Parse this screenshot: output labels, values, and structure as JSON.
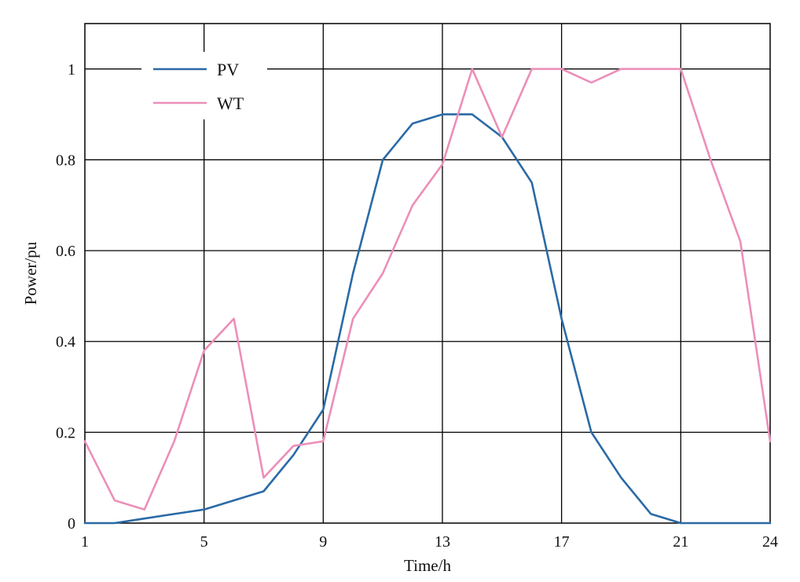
{
  "chart_data": {
    "type": "line",
    "xlabel": "Time/h",
    "ylabel": "Power/pu",
    "xlim": [
      1,
      24
    ],
    "ylim": [
      0,
      1.1
    ],
    "xticks": [
      1,
      5,
      9,
      13,
      17,
      21,
      24
    ],
    "yticks": [
      0,
      0.2,
      0.4,
      0.6,
      0.8,
      1
    ],
    "ytick_labels": [
      "0",
      "0.2",
      "0.4",
      "0.6",
      "0.8",
      "1"
    ],
    "grid": true,
    "legend_position": "top-left",
    "x": [
      1,
      2,
      3,
      4,
      5,
      6,
      7,
      8,
      9,
      10,
      11,
      12,
      13,
      14,
      15,
      16,
      17,
      18,
      19,
      20,
      21,
      22,
      23,
      24
    ],
    "series": [
      {
        "name": "PV",
        "color": "#2a6aa6",
        "values": [
          0,
          0,
          0.01,
          0.02,
          0.03,
          0.05,
          0.07,
          0.15,
          0.25,
          0.55,
          0.8,
          0.88,
          0.9,
          0.9,
          0.85,
          0.75,
          0.45,
          0.2,
          0.1,
          0.02,
          0,
          0,
          0,
          0
        ]
      },
      {
        "name": "WT",
        "color": "#ec8fb8",
        "values": [
          0.18,
          0.05,
          0.03,
          0.18,
          0.38,
          0.45,
          0.1,
          0.17,
          0.18,
          0.45,
          0.55,
          0.7,
          0.79,
          1.0,
          0.85,
          1.0,
          1.0,
          0.97,
          1.0,
          1.0,
          1.0,
          0.8,
          0.62,
          0.18
        ]
      }
    ]
  }
}
